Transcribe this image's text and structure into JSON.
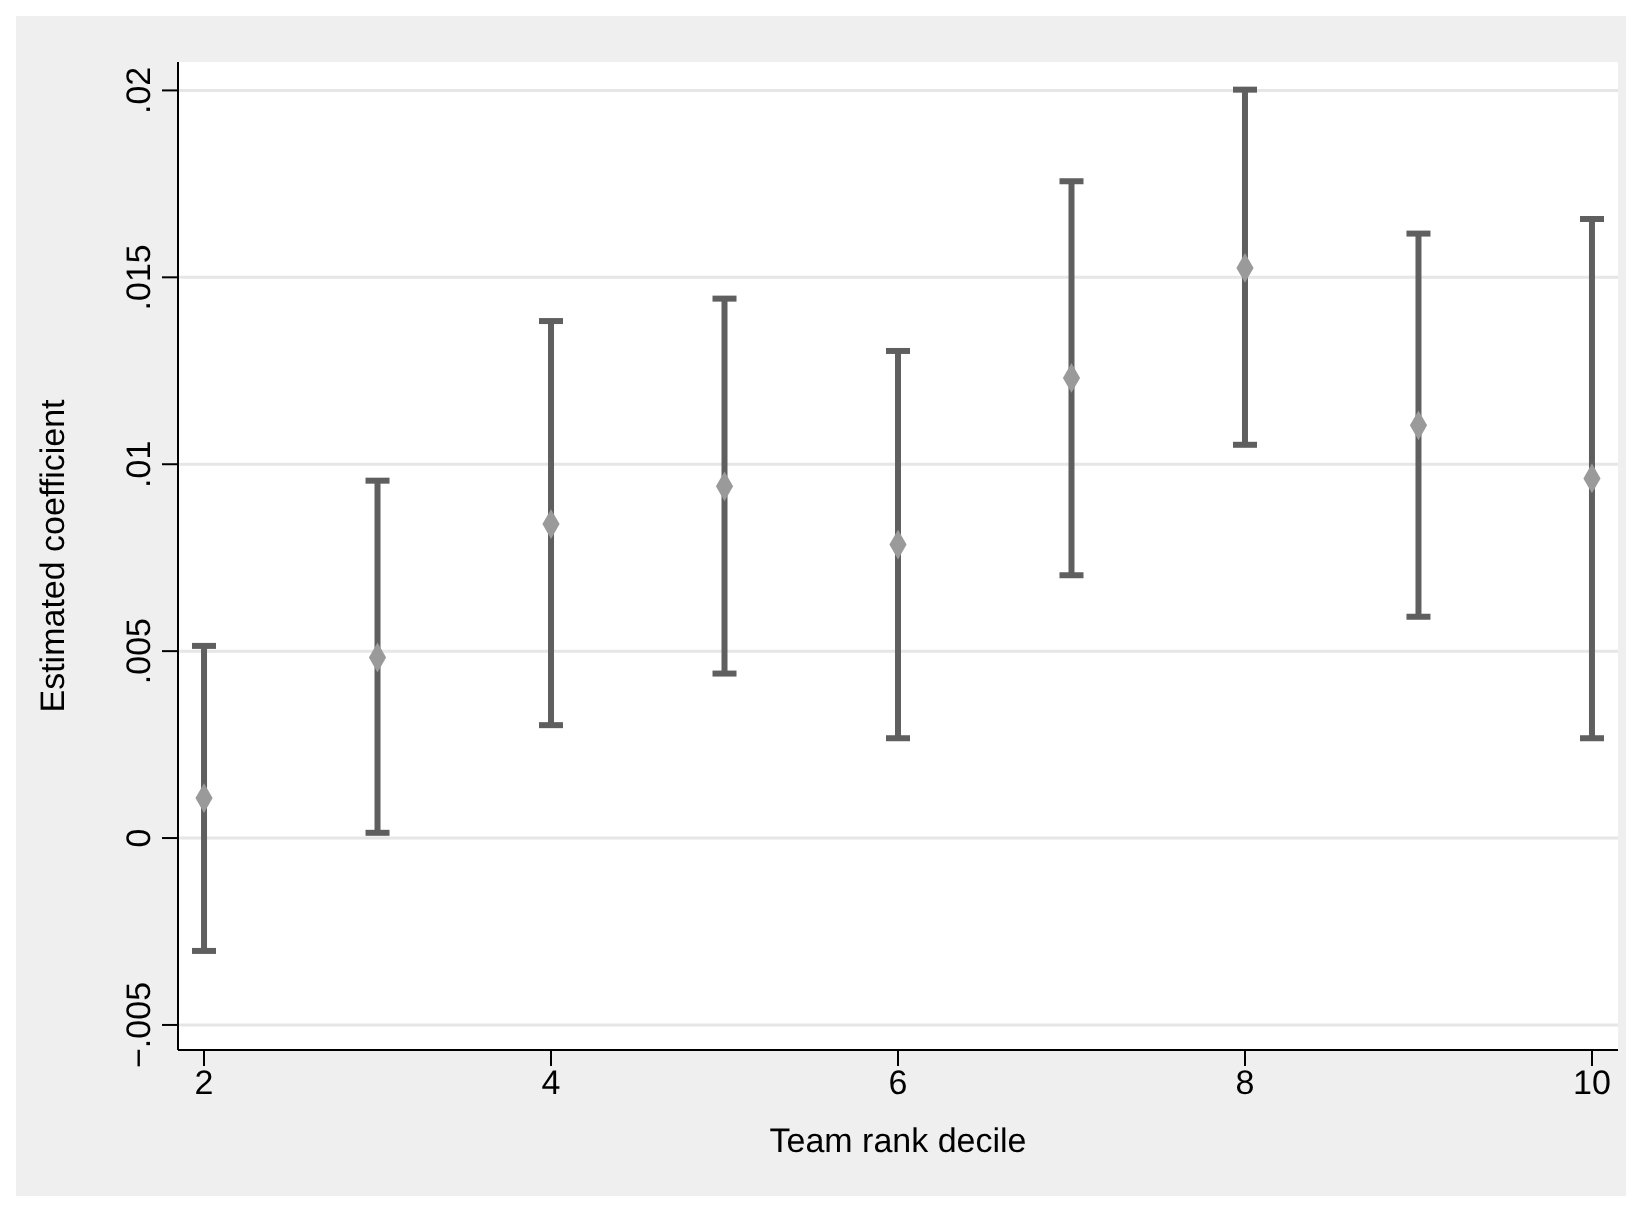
{
  "chart_data": {
    "type": "scatter",
    "xlabel": "Team rank decile",
    "ylabel": "Estimated coefficient",
    "x": [
      2,
      3,
      4,
      5,
      6,
      7,
      8,
      9,
      10
    ],
    "series": [
      {
        "color": "#9a9a9a",
        "values": [
          0.00107,
          0.00483,
          0.0084,
          0.00941,
          0.00785,
          0.01231,
          0.01525,
          0.01104,
          0.00962
        ],
        "errors": [
          [
            -0.00302,
            0.00514
          ],
          [
            0.00014,
            0.00956
          ],
          [
            0.00302,
            0.01383
          ],
          [
            0.0044,
            0.01443
          ],
          [
            0.00267,
            0.01303
          ],
          [
            0.00703,
            0.01757
          ],
          [
            0.01052,
            0.02002
          ],
          [
            0.00592,
            0.01617
          ],
          [
            0.00267,
            0.01656
          ]
        ]
      }
    ],
    "xlim": [
      1.85,
      10.15
    ],
    "xticks": [
      2,
      4,
      6,
      8,
      10
    ],
    "ylim": [
      -0.00567,
      0.02076
    ],
    "yticks": [
      {
        "value": -0.005,
        "label": "−.005"
      },
      {
        "value": 0,
        "label": "0"
      },
      {
        "value": 0.005,
        "label": ".005"
      },
      {
        "value": 0.01,
        "label": ".01"
      },
      {
        "value": 0.015,
        "label": ".015"
      },
      {
        "value": 0.02,
        "label": ".02"
      }
    ],
    "grid": "y",
    "marker": "diamond"
  }
}
